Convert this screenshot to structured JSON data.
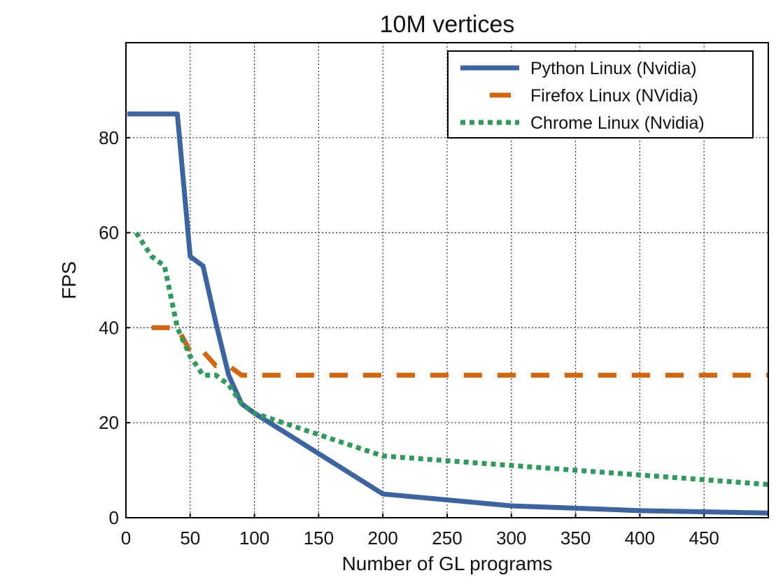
{
  "chart_data": {
    "type": "line",
    "title": "10M vertices",
    "xlabel": "Number of GL programs",
    "ylabel": "FPS",
    "xlim": [
      0,
      500
    ],
    "ylim": [
      0,
      100
    ],
    "xticks": [
      0,
      50,
      100,
      150,
      200,
      250,
      300,
      350,
      400,
      450
    ],
    "yticks": [
      0,
      20,
      40,
      60,
      80
    ],
    "grid": true,
    "legend_position": "top-right",
    "series": [
      {
        "name": "Python Linux (Nvidia)",
        "color": "#3b64a0",
        "style": "solid",
        "x": [
          1,
          10,
          20,
          30,
          40,
          50,
          60,
          70,
          80,
          90,
          100,
          200,
          300,
          400,
          500
        ],
        "y": [
          85,
          85,
          85,
          85,
          85,
          55,
          53,
          41,
          30,
          24,
          22,
          5,
          2.5,
          1.5,
          1
        ]
      },
      {
        "name": "Firefox Linux (NVidia)",
        "color": "#d4650f",
        "style": "dashed",
        "x": [
          20,
          30,
          40,
          50,
          60,
          70,
          80,
          90,
          100,
          200,
          300,
          400,
          500
        ],
        "y": [
          40,
          40,
          40,
          35,
          35,
          32,
          32,
          30,
          30,
          30,
          30,
          30,
          30
        ]
      },
      {
        "name": "Chrome Linux (Nvidia)",
        "color": "#2e9a5c",
        "style": "dotted",
        "x": [
          8,
          20,
          30,
          40,
          50,
          60,
          70,
          80,
          90,
          100,
          200,
          300,
          400,
          500
        ],
        "y": [
          60,
          55,
          53,
          40,
          34,
          30,
          30,
          28,
          24,
          22,
          13,
          11,
          9,
          7
        ]
      }
    ]
  }
}
